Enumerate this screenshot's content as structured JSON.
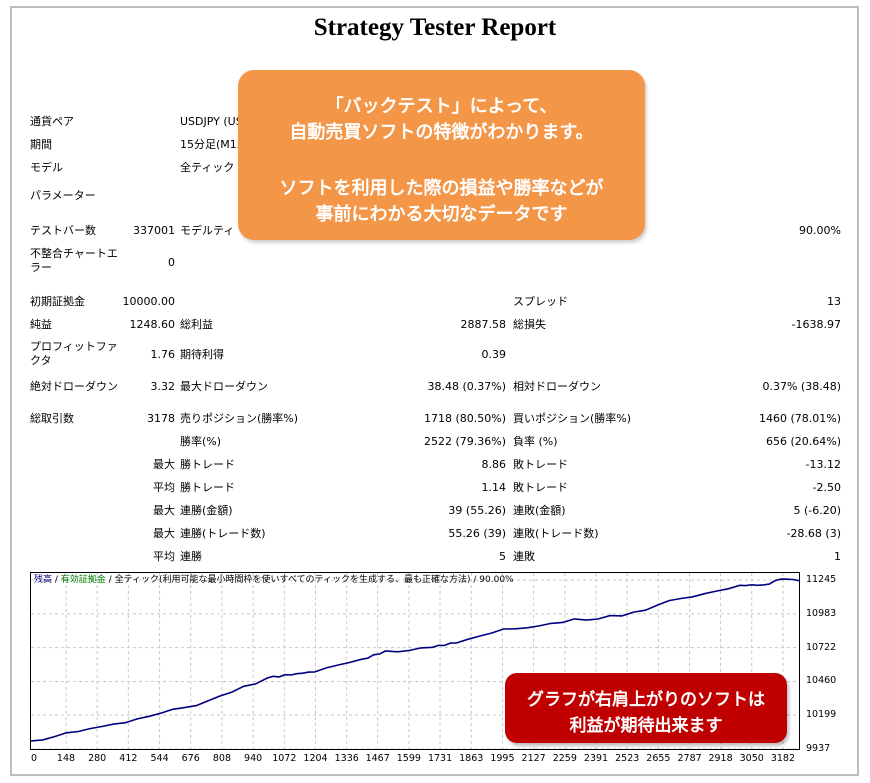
{
  "report": {
    "title": "Strategy Tester Report",
    "rows": {
      "symbol_label": "通貨ペア",
      "symbol_value": "USDJPY (US",
      "period_label": "期間",
      "period_value": "15分足(M15",
      "model_label": "モデル",
      "model_value": "全ティック",
      "params_label": "パラメーター",
      "bars_label": "テストバー数",
      "bars_value": "337001",
      "quality_label": "モデルティ",
      "quality_value": "90.00%",
      "mismatch_label": "不整合チャートエラー",
      "mismatch_value": "0",
      "deposit_label": "初期証拠金",
      "deposit_value": "10000.00",
      "spread_label": "スプレッド",
      "spread_value": "13",
      "netprofit_label": "純益",
      "netprofit_value": "1248.60",
      "grossprofit_label": "総利益",
      "grossprofit_value": "2887.58",
      "grossloss_label": "総損失",
      "grossloss_value": "-1638.97",
      "pf_label": "プロフィットファクタ",
      "pf_value": "1.76",
      "payoff_label": "期待利得",
      "payoff_value": "0.39",
      "absdd_label": "絶対ドローダウン",
      "absdd_value": "3.32",
      "maxdd_label": "最大ドローダウン",
      "maxdd_value": "38.48 (0.37%)",
      "reldd_label": "相対ドローダウン",
      "reldd_value": "0.37% (38.48)",
      "trades_label": "総取引数",
      "trades_value": "3178",
      "short_label": "売りポジション(勝率%)",
      "short_value": "1718 (80.50%)",
      "long_label": "買いポジション(勝率%)",
      "long_value": "1460 (78.01%)",
      "win_label": "勝率(%)",
      "win_value": "2522 (79.36%)",
      "loss_label": "負率 (%)",
      "loss_value": "656 (20.64%)",
      "max1_prefix": "最大",
      "largest_win_label": "勝トレード",
      "largest_win_value": "8.86",
      "largest_loss_label": "敗トレード",
      "largest_loss_value": "-13.12",
      "avg1_prefix": "平均",
      "avg_win_label": "勝トレード",
      "avg_win_value": "1.14",
      "avg_loss_label": "敗トレード",
      "avg_loss_value": "-2.50",
      "max2_prefix": "最大",
      "cons_wins_label": "連勝(金額)",
      "cons_wins_value": "39 (55.26)",
      "cons_losses_label": "連敗(金額)",
      "cons_losses_value": "5 (-6.20)",
      "max3_prefix": "最大",
      "cons_profit_label": "連勝(トレード数)",
      "cons_profit_value": "55.26 (39)",
      "cons_loss_label": "連敗(トレード数)",
      "cons_loss_value": "-28.68 (3)",
      "avg2_prefix": "平均",
      "avg_cons_wins_label": "連勝",
      "avg_cons_wins_value": "5",
      "avg_cons_losses_label": "連敗",
      "avg_cons_losses_value": "1"
    }
  },
  "callout": {
    "line1": "「バックテスト」によって、",
    "line2": "自動売買ソフトの特徴がわかります。",
    "line3": "ソフトを利用した際の損益や勝率などが",
    "line4": "事前にわかる大切なデータです",
    "color": "#f39647"
  },
  "callout2": {
    "line1": "グラフが右肩上がりのソフトは",
    "line2": "利益が期待出来ます",
    "color": "#c00000"
  },
  "chart_legend": {
    "balance": "残高",
    "sep1": " / ",
    "equity": "有効証拠金",
    "sep2": " / ",
    "model": "全ティック(利用可能な最小時間枠を使いすべてのティックを生成する、最も正確な方法)",
    "sep3": " / ",
    "quality": "90.00%"
  },
  "chart_data": {
    "type": "line",
    "title": "",
    "xlabel": "",
    "ylabel": "",
    "x_ticks": [
      "0",
      "148",
      "280",
      "412",
      "544",
      "676",
      "808",
      "940",
      "1072",
      "1204",
      "1336",
      "1467",
      "1599",
      "1731",
      "1863",
      "1995",
      "2127",
      "2259",
      "2391",
      "2523",
      "2655",
      "2787",
      "2918",
      "3050",
      "3182"
    ],
    "y_ticks": [
      "11245",
      "10983",
      "10722",
      "10460",
      "10199",
      "9937"
    ],
    "ylim": [
      9937,
      11300
    ],
    "xlim": [
      0,
      3250
    ],
    "grid": true,
    "series": [
      {
        "color": "#000080",
        "x": [
          0,
          100,
          200,
          300,
          400,
          500,
          600,
          700,
          800,
          900,
          1000,
          1050,
          1100,
          1150,
          1200,
          1300,
          1400,
          1450,
          1500,
          1600,
          1700,
          1750,
          1800,
          1900,
          2000,
          2100,
          2200,
          2300,
          2400,
          2500,
          2600,
          2700,
          2800,
          2900,
          3000,
          3050,
          3100,
          3150,
          3200,
          3250
        ],
        "y": [
          10000,
          10035,
          10070,
          10105,
          10145,
          10190,
          10240,
          10280,
          10350,
          10420,
          10480,
          10500,
          10510,
          10520,
          10540,
          10590,
          10630,
          10660,
          10700,
          10700,
          10720,
          10745,
          10760,
          10810,
          10860,
          10880,
          10910,
          10940,
          10950,
          10970,
          11010,
          11080,
          11120,
          11160,
          11200,
          11215,
          11210,
          11240,
          11245,
          11240
        ]
      }
    ]
  }
}
